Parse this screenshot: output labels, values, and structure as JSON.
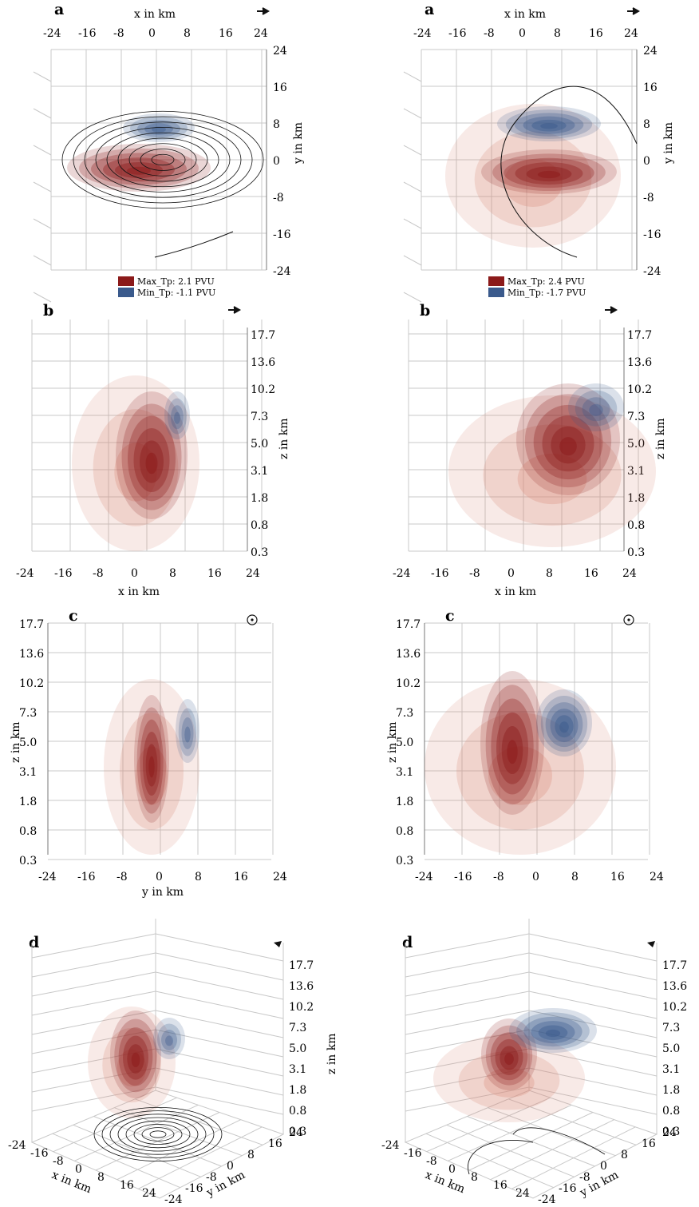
{
  "panels": {
    "a": {
      "letter": "a",
      "x_label": "x in km",
      "y_label": "y in km",
      "x_ticks": [
        "-24",
        "-16",
        "-8",
        "0",
        "8",
        "16",
        "24"
      ],
      "y_ticks": [
        "24",
        "16",
        "8",
        "0",
        "-8",
        "-16",
        "-24"
      ]
    },
    "b": {
      "letter": "b",
      "x_label": "x in km",
      "z_label": "z in km",
      "x_ticks": [
        "-24",
        "-16",
        "-8",
        "0",
        "8",
        "16",
        "24"
      ],
      "z_ticks": [
        "17.7",
        "13.6",
        "10.2",
        "7.3",
        "5.0",
        "3.1",
        "1.8",
        "0.8",
        "0.3"
      ]
    },
    "c": {
      "letter": "c",
      "y_label": "y in km",
      "z_label": "z in km",
      "y_ticks": [
        "-24",
        "-16",
        "-8",
        "0",
        "8",
        "16",
        "24"
      ],
      "z_ticks": [
        "17.7",
        "13.6",
        "10.2",
        "7.3",
        "5.0",
        "3.1",
        "1.8",
        "0.8",
        "0.3"
      ]
    },
    "d": {
      "letter": "d",
      "x_label": "x in km",
      "y_label": "y in km",
      "z_label": "z in km",
      "x_ticks": [
        "-24",
        "-16",
        "-8",
        "0",
        "8",
        "16",
        "24"
      ],
      "y_ticks": [
        "-24",
        "-16",
        "-8",
        "0",
        "8",
        "16",
        "24"
      ],
      "z_ticks": [
        "17.7",
        "13.6",
        "10.2",
        "7.3",
        "5.0",
        "3.1",
        "1.8",
        "0.8",
        "0.3"
      ]
    }
  },
  "legend_left": {
    "max": "Max_Tp: 2.1 PVU",
    "min": "Min_Tp: -1.1 PVU"
  },
  "legend_right": {
    "max": "Max_Tp: 2.4 PVU",
    "min": "Min_Tp: -1.7 PVU"
  },
  "colors": {
    "positive": "#8b1a1a",
    "negative": "#3a5a8c",
    "grid": "#c8c8c8"
  }
}
